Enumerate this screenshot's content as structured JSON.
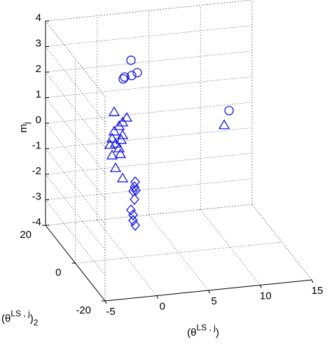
{
  "chart_data": {
    "type": "scatter3d",
    "xlabel": {
      "text": "(θ",
      "sup": "LS , j",
      "end": ")"
    },
    "ylabel": {
      "text": "(θ",
      "sup": "LS , j",
      "end": ")",
      "sub": "2"
    },
    "zlabel": {
      "text": "m",
      "sub": "j"
    },
    "xlim": [
      -5,
      15
    ],
    "xticks": [
      -5,
      0,
      5,
      10,
      15
    ],
    "ylim": [
      -20,
      20
    ],
    "yticks": [
      -20,
      0,
      20
    ],
    "zlim": [
      -4,
      4
    ],
    "zticks": [
      -4,
      -3,
      -2,
      -1,
      0,
      1,
      2,
      3,
      4
    ],
    "grid": true,
    "series": [
      {
        "marker": "circle",
        "color": "#0000ff",
        "x": [
          0.39,
          -0.22,
          -0.36,
          0.46,
          1.0,
          9.88
        ],
        "y": [
          0,
          0,
          0,
          0,
          0,
          0
        ],
        "z": [
          3.72,
          3.09,
          3.02,
          3.12,
          3.21,
          1.36
        ]
      },
      {
        "marker": "triangle",
        "color": "#0000ff",
        "x": [
          -1.24,
          -0.02,
          -0.42,
          -0.76,
          -1.24,
          -0.42,
          -1.44,
          -0.56,
          -1.1,
          -1.64,
          -0.76,
          -0.63,
          -1.44,
          -1.1,
          -0.42,
          9.41
        ],
        "y": [
          0,
          0,
          0,
          0,
          0,
          0,
          0,
          0,
          0,
          0,
          0,
          0,
          0,
          0,
          0,
          0
        ],
        "z": [
          1.76,
          1.49,
          1.32,
          1.19,
          1.0,
          0.82,
          0.73,
          0.64,
          0.52,
          0.49,
          0.32,
          0.09,
          0.07,
          -0.44,
          -0.87,
          0.81
        ]
      },
      {
        "marker": "diamond",
        "color": "#0000ff",
        "x": [
          0.8,
          0.73,
          0.59,
          0.86,
          0.73,
          0.39,
          0.59,
          0.59,
          0.8
        ],
        "y": [
          0,
          0,
          0,
          0,
          0,
          0,
          0,
          0,
          0
        ],
        "z": [
          -1.06,
          -1.25,
          -1.41,
          -1.39,
          -1.74,
          -2.14,
          -2.34,
          -2.56,
          -2.76
        ]
      }
    ]
  }
}
